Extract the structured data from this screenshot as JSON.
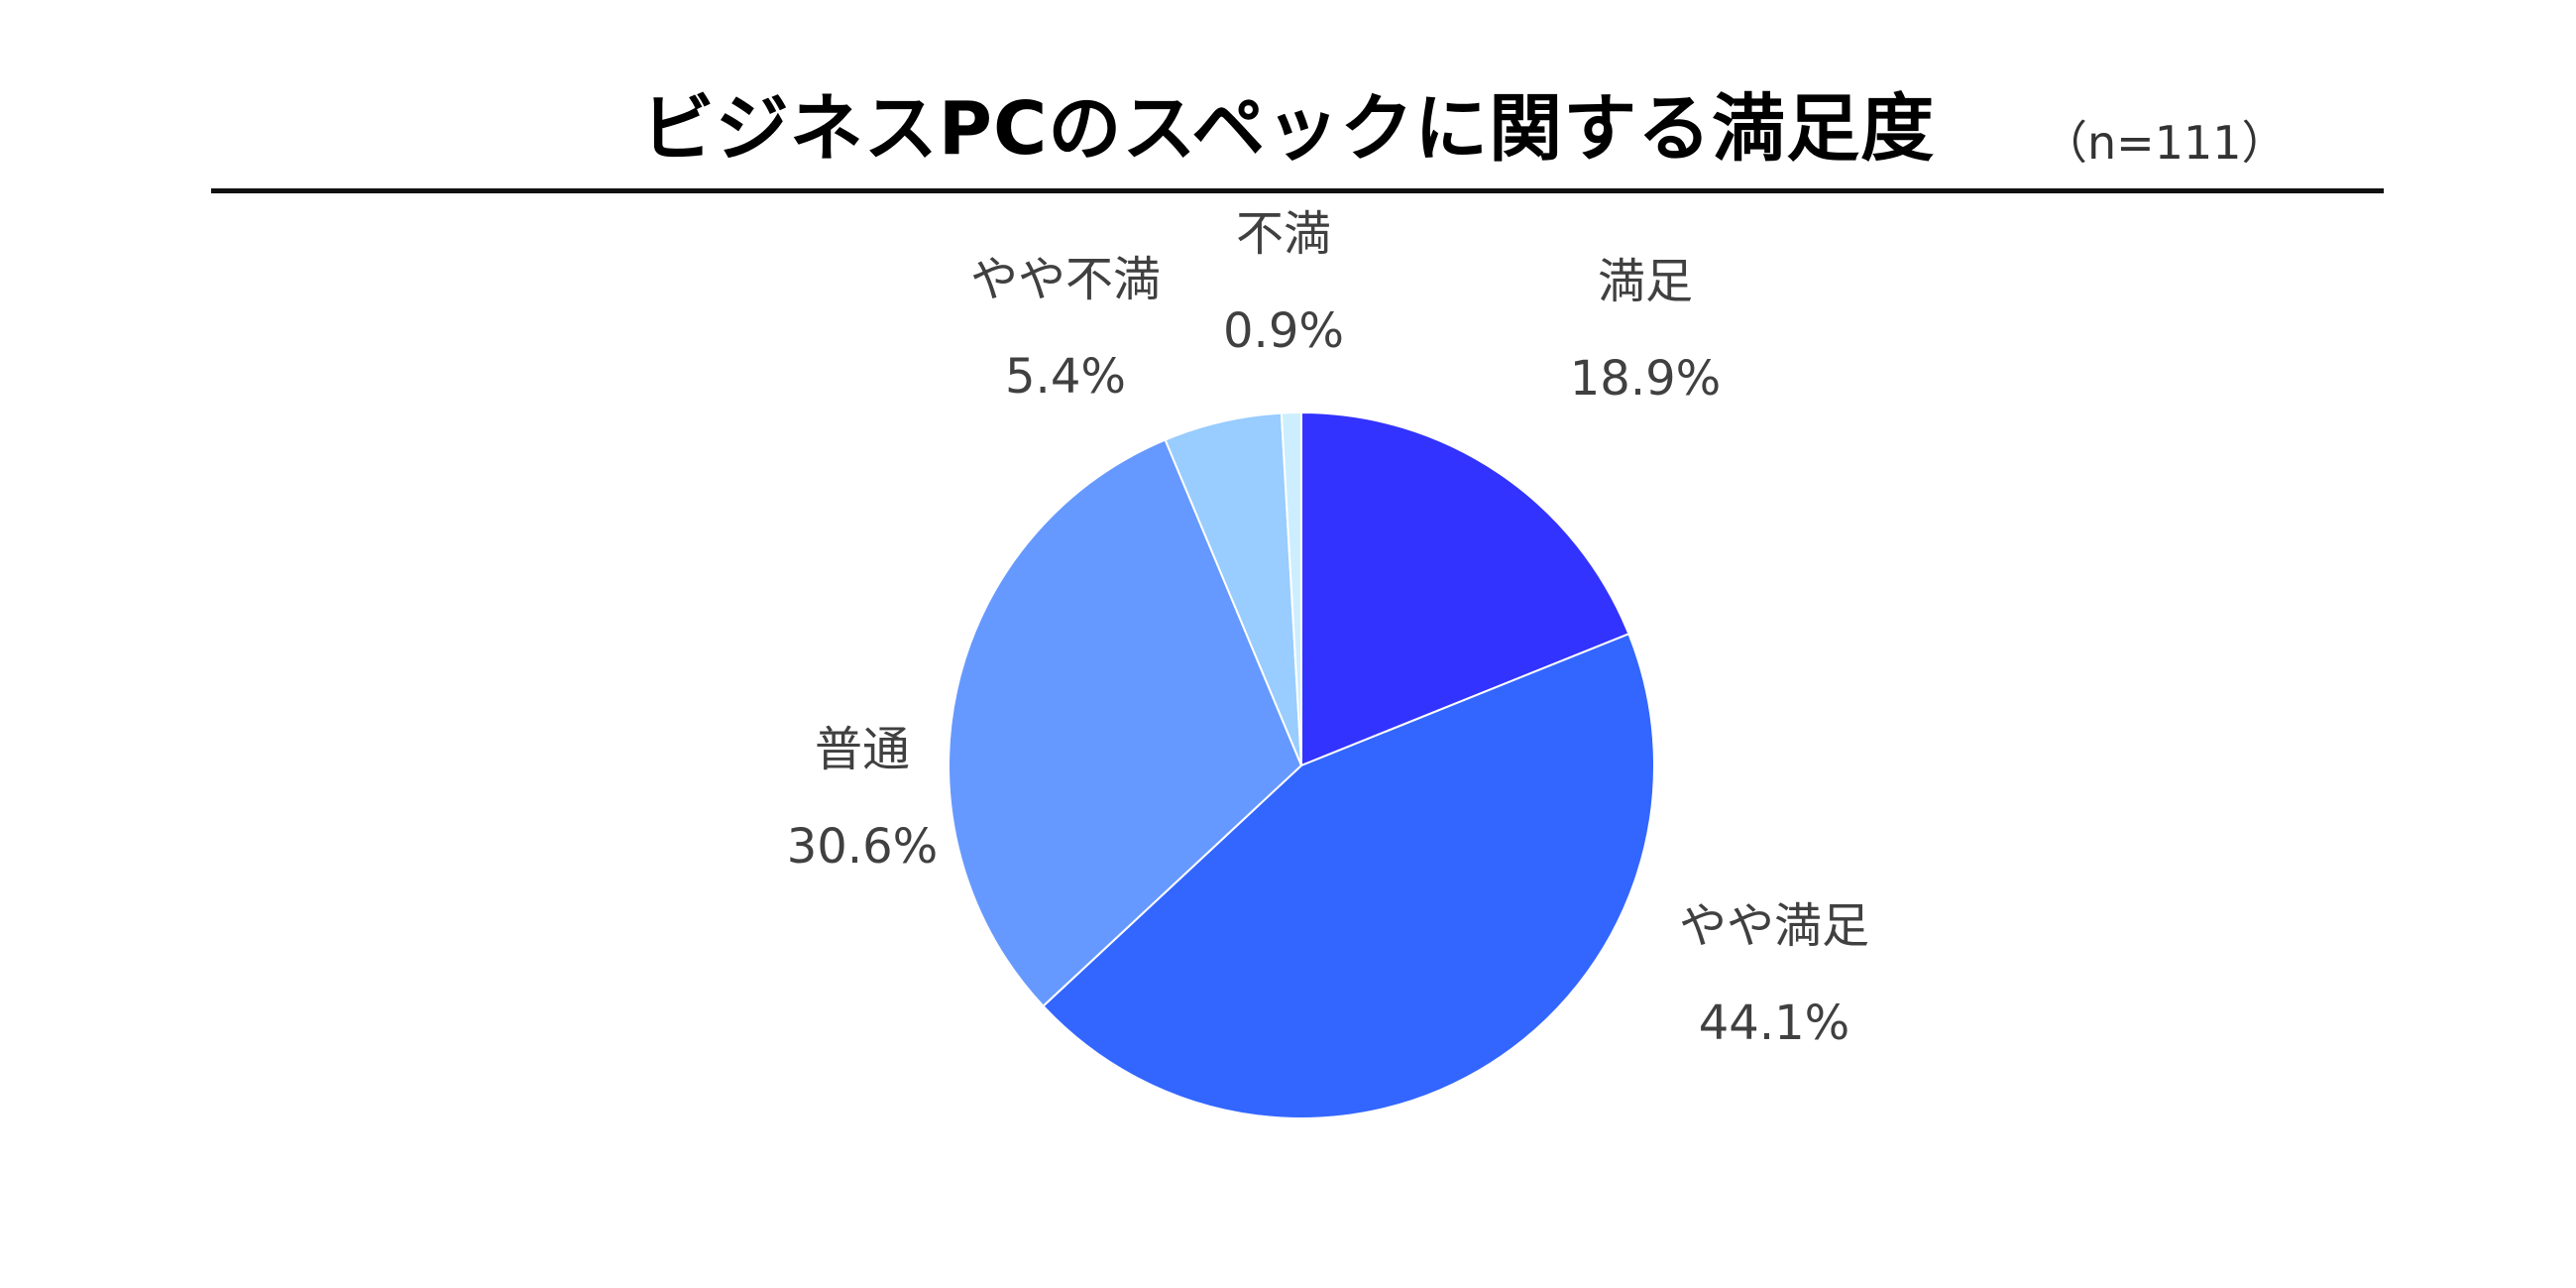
{
  "chart_data": {
    "type": "pie",
    "title": "ビジネスPCのスペックに関する満足度",
    "note": "（n=111）",
    "slices": [
      {
        "label": "満足",
        "value": 18.9,
        "value_label": "18.9%",
        "color": "#3333FF"
      },
      {
        "label": "やや満足",
        "value": 44.1,
        "value_label": "44.1%",
        "color": "#3366FF"
      },
      {
        "label": "普通",
        "value": 30.6,
        "value_label": "30.6%",
        "color": "#6699FF"
      },
      {
        "label": "やや不満",
        "value": 5.4,
        "value_label": "5.4%",
        "color": "#99CCFF"
      },
      {
        "label": "不満",
        "value": 0.9,
        "value_label": "0.9%",
        "color": "#CCEEFF"
      }
    ],
    "legend": "none"
  }
}
